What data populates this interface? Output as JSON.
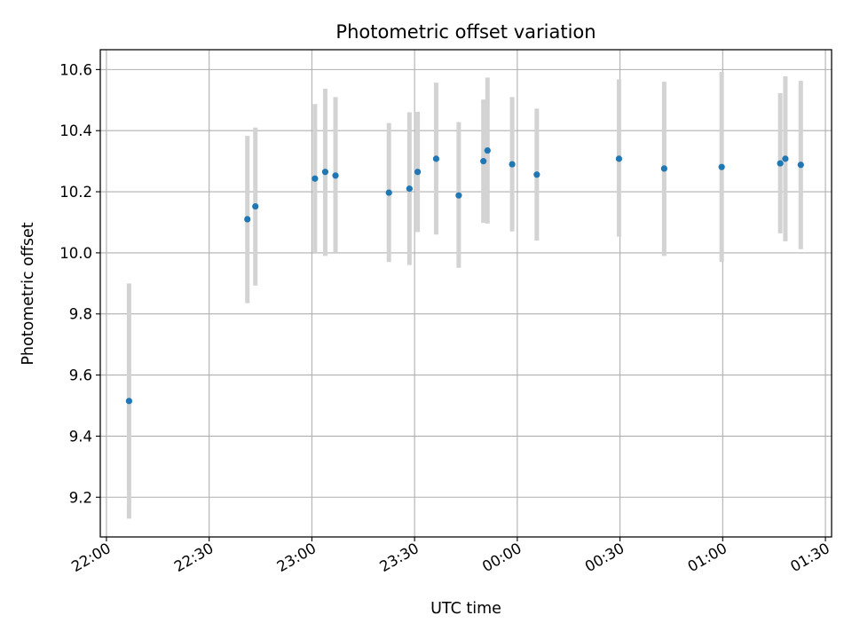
{
  "chart_data": {
    "type": "scatter",
    "title": "Photometric offset variation",
    "xlabel": "UTC time",
    "ylabel": "Photometric offset",
    "x_unit": "UTC time of day (hours; values past 24 are the following day)",
    "xlim": [
      21.97,
      25.53
    ],
    "ylim": [
      9.07,
      10.665
    ],
    "grid": true,
    "marker_color": "#1f77b4",
    "errorbar_color": "#d3d3d3",
    "x_ticks": [
      {
        "value": 22.0,
        "label": "22:00"
      },
      {
        "value": 22.5,
        "label": "22:30"
      },
      {
        "value": 23.0,
        "label": "23:00"
      },
      {
        "value": 23.5,
        "label": "23:30"
      },
      {
        "value": 24.0,
        "label": "00:00"
      },
      {
        "value": 24.5,
        "label": "00:30"
      },
      {
        "value": 25.0,
        "label": "01:00"
      },
      {
        "value": 25.5,
        "label": "01:30"
      }
    ],
    "y_ticks": [
      {
        "value": 9.2,
        "label": "9.2"
      },
      {
        "value": 9.4,
        "label": "9.4"
      },
      {
        "value": 9.6,
        "label": "9.6"
      },
      {
        "value": 9.8,
        "label": "9.8"
      },
      {
        "value": 10.0,
        "label": "10.0"
      },
      {
        "value": 10.2,
        "label": "10.2"
      },
      {
        "value": 10.4,
        "label": "10.4"
      },
      {
        "value": 10.6,
        "label": "10.6"
      }
    ],
    "points": [
      {
        "x": 22.11,
        "y": 9.515,
        "err_low": 9.13,
        "err_high": 9.9
      },
      {
        "x": 22.686,
        "y": 10.11,
        "err_low": 9.835,
        "err_high": 10.383
      },
      {
        "x": 22.725,
        "y": 10.152,
        "err_low": 9.893,
        "err_high": 10.41
      },
      {
        "x": 23.015,
        "y": 10.243,
        "err_low": 10.0,
        "err_high": 10.487
      },
      {
        "x": 23.065,
        "y": 10.265,
        "err_low": 9.99,
        "err_high": 10.537
      },
      {
        "x": 23.115,
        "y": 10.253,
        "err_low": 10.0,
        "err_high": 10.51
      },
      {
        "x": 23.375,
        "y": 10.197,
        "err_low": 9.97,
        "err_high": 10.425
      },
      {
        "x": 23.475,
        "y": 10.21,
        "err_low": 9.96,
        "err_high": 10.46
      },
      {
        "x": 23.515,
        "y": 10.265,
        "err_low": 10.068,
        "err_high": 10.462
      },
      {
        "x": 23.605,
        "y": 10.308,
        "err_low": 10.06,
        "err_high": 10.557
      },
      {
        "x": 23.715,
        "y": 10.188,
        "err_low": 9.951,
        "err_high": 10.428
      },
      {
        "x": 23.835,
        "y": 10.3,
        "err_low": 10.098,
        "err_high": 10.502
      },
      {
        "x": 23.855,
        "y": 10.335,
        "err_low": 10.096,
        "err_high": 10.574
      },
      {
        "x": 23.975,
        "y": 10.29,
        "err_low": 10.07,
        "err_high": 10.51
      },
      {
        "x": 24.095,
        "y": 10.256,
        "err_low": 10.04,
        "err_high": 10.472
      },
      {
        "x": 24.495,
        "y": 10.308,
        "err_low": 10.053,
        "err_high": 10.568
      },
      {
        "x": 24.715,
        "y": 10.276,
        "err_low": 9.99,
        "err_high": 10.56
      },
      {
        "x": 24.995,
        "y": 10.281,
        "err_low": 9.97,
        "err_high": 10.592
      },
      {
        "x": 25.28,
        "y": 10.293,
        "err_low": 10.064,
        "err_high": 10.523
      },
      {
        "x": 25.305,
        "y": 10.308,
        "err_low": 10.038,
        "err_high": 10.578
      },
      {
        "x": 25.38,
        "y": 10.288,
        "err_low": 10.012,
        "err_high": 10.563
      }
    ]
  }
}
